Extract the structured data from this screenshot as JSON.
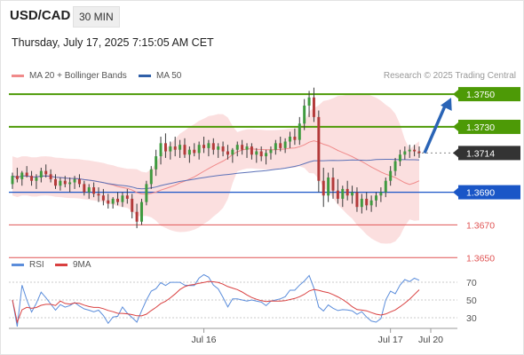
{
  "header": {
    "symbol": "USD/CAD",
    "timeframe": "30 MIN",
    "datetime": "Thursday, July 17, 2025 7:15:05 AM CET",
    "credit": "Research © 2025 Trading Central"
  },
  "colors": {
    "support": "#1a56c7",
    "resistance": "#4d9a06",
    "minor_level": "#e05454",
    "current": "#333333",
    "bull_candle": "#3f9a3f",
    "bear_candle": "#b33a3a",
    "ma20": "#f08a8a",
    "bb_fill": "#fbdcdc",
    "ma50": "#5d72b8",
    "arrow": "#2a64b6",
    "rsi": "#5b8ddb",
    "rsi_ma": "#d94040"
  },
  "chart_data": [
    {
      "type": "candlestick",
      "name": "price",
      "legend": [
        {
          "label": "MA 20 + Bollinger Bands",
          "color": "#f08a8a"
        },
        {
          "label": "MA 50",
          "color": "#2f5fa8"
        }
      ],
      "ylim": [
        1.3642,
        1.3762
      ],
      "x_ticks": [
        "Jul 16",
        "Jul 17",
        "Jul 20"
      ],
      "levels": [
        {
          "label": "1.3750",
          "value": 1.375,
          "kind": "resistance"
        },
        {
          "label": "1.3730",
          "value": 1.373,
          "kind": "resistance"
        },
        {
          "label": "1.3714",
          "value": 1.3714,
          "kind": "current"
        },
        {
          "label": "1.3690",
          "value": 1.369,
          "kind": "support"
        },
        {
          "label": "1.3670",
          "value": 1.367,
          "kind": "minor"
        },
        {
          "label": "1.3650",
          "value": 1.365,
          "kind": "minor"
        }
      ],
      "forecast": {
        "from": 1.3714,
        "to": 1.375,
        "direction": "up"
      },
      "candles": [
        [
          1.3695,
          1.3702,
          1.3692,
          1.37
        ],
        [
          1.37,
          1.3705,
          1.3696,
          1.3698
        ],
        [
          1.3698,
          1.3703,
          1.3694,
          1.3702
        ],
        [
          1.3702,
          1.3706,
          1.3699,
          1.37
        ],
        [
          1.37,
          1.3703,
          1.3694,
          1.3697
        ],
        [
          1.3697,
          1.3701,
          1.3692,
          1.3699
        ],
        [
          1.3699,
          1.3705,
          1.3696,
          1.3703
        ],
        [
          1.3703,
          1.3707,
          1.3699,
          1.3701
        ],
        [
          1.3701,
          1.3704,
          1.3696,
          1.3698
        ],
        [
          1.3698,
          1.3701,
          1.3692,
          1.3694
        ],
        [
          1.3694,
          1.3699,
          1.3691,
          1.3697
        ],
        [
          1.3697,
          1.37,
          1.3693,
          1.3695
        ],
        [
          1.3695,
          1.3699,
          1.369,
          1.3696
        ],
        [
          1.3696,
          1.37,
          1.3692,
          1.3698
        ],
        [
          1.3698,
          1.3701,
          1.3693,
          1.3695
        ],
        [
          1.3695,
          1.3697,
          1.3688,
          1.369
        ],
        [
          1.369,
          1.3695,
          1.3686,
          1.3693
        ],
        [
          1.3693,
          1.3696,
          1.3687,
          1.3689
        ],
        [
          1.3689,
          1.3693,
          1.3684,
          1.3688
        ],
        [
          1.3688,
          1.3692,
          1.3682,
          1.3685
        ],
        [
          1.3685,
          1.3689,
          1.368,
          1.3683
        ],
        [
          1.3683,
          1.3687,
          1.368,
          1.3686
        ],
        [
          1.3686,
          1.369,
          1.3682,
          1.3684
        ],
        [
          1.3684,
          1.369,
          1.3681,
          1.3688
        ],
        [
          1.3688,
          1.3692,
          1.3683,
          1.3686
        ],
        [
          1.3686,
          1.3689,
          1.3674,
          1.3678
        ],
        [
          1.3678,
          1.3683,
          1.3668,
          1.3672
        ],
        [
          1.3672,
          1.3686,
          1.367,
          1.3684
        ],
        [
          1.3684,
          1.3697,
          1.3682,
          1.3695
        ],
        [
          1.3695,
          1.3706,
          1.3692,
          1.3704
        ],
        [
          1.3704,
          1.3716,
          1.37,
          1.3712
        ],
        [
          1.3712,
          1.3724,
          1.3707,
          1.372
        ],
        [
          1.372,
          1.3726,
          1.3711,
          1.3715
        ],
        [
          1.3715,
          1.3721,
          1.371,
          1.3718
        ],
        [
          1.3718,
          1.3724,
          1.3712,
          1.3716
        ],
        [
          1.3716,
          1.3722,
          1.3711,
          1.3719
        ],
        [
          1.3719,
          1.3723,
          1.3711,
          1.3713
        ],
        [
          1.3713,
          1.3718,
          1.3708,
          1.3716
        ],
        [
          1.3716,
          1.372,
          1.3712,
          1.3714
        ],
        [
          1.3714,
          1.3721,
          1.371,
          1.3719
        ],
        [
          1.3719,
          1.3724,
          1.3714,
          1.3717
        ],
        [
          1.3717,
          1.3722,
          1.3712,
          1.372
        ],
        [
          1.372,
          1.3723,
          1.3713,
          1.3716
        ],
        [
          1.3716,
          1.372,
          1.3711,
          1.3718
        ],
        [
          1.3718,
          1.3721,
          1.3712,
          1.3715
        ],
        [
          1.3715,
          1.3719,
          1.371,
          1.3713
        ],
        [
          1.3713,
          1.3717,
          1.3708,
          1.3716
        ],
        [
          1.3716,
          1.3721,
          1.3712,
          1.3719
        ],
        [
          1.3719,
          1.3722,
          1.3713,
          1.3716
        ],
        [
          1.3716,
          1.372,
          1.3711,
          1.3718
        ],
        [
          1.3718,
          1.372,
          1.371,
          1.3713
        ],
        [
          1.3713,
          1.3717,
          1.3708,
          1.3715
        ],
        [
          1.3715,
          1.3718,
          1.3709,
          1.3712
        ],
        [
          1.3712,
          1.3716,
          1.3707,
          1.3714
        ],
        [
          1.3714,
          1.3718,
          1.371,
          1.3716
        ],
        [
          1.3716,
          1.3722,
          1.3713,
          1.372
        ],
        [
          1.372,
          1.3724,
          1.3715,
          1.3717
        ],
        [
          1.3717,
          1.3723,
          1.3714,
          1.3721
        ],
        [
          1.3721,
          1.3727,
          1.3717,
          1.3724
        ],
        [
          1.3724,
          1.3729,
          1.3719,
          1.3722
        ],
        [
          1.3722,
          1.3736,
          1.3719,
          1.3732
        ],
        [
          1.3732,
          1.3747,
          1.3728,
          1.3743
        ],
        [
          1.3743,
          1.3752,
          1.3736,
          1.3748
        ],
        [
          1.3748,
          1.3754,
          1.3733,
          1.3736
        ],
        [
          1.3736,
          1.374,
          1.369,
          1.3697
        ],
        [
          1.3697,
          1.3705,
          1.3681,
          1.3688
        ],
        [
          1.3688,
          1.3702,
          1.3684,
          1.3699
        ],
        [
          1.3699,
          1.3705,
          1.3686,
          1.3691
        ],
        [
          1.3691,
          1.3698,
          1.3683,
          1.3686
        ],
        [
          1.3686,
          1.3694,
          1.3681,
          1.3692
        ],
        [
          1.3692,
          1.3697,
          1.3685,
          1.3688
        ],
        [
          1.3688,
          1.3694,
          1.3683,
          1.369
        ],
        [
          1.369,
          1.3693,
          1.3678,
          1.3681
        ],
        [
          1.3681,
          1.3689,
          1.3677,
          1.3686
        ],
        [
          1.3686,
          1.369,
          1.3679,
          1.3682
        ],
        [
          1.3682,
          1.3688,
          1.3678,
          1.3685
        ],
        [
          1.3685,
          1.369,
          1.3681,
          1.3688
        ],
        [
          1.3688,
          1.3693,
          1.3684,
          1.369
        ],
        [
          1.369,
          1.3699,
          1.3687,
          1.3697
        ],
        [
          1.3697,
          1.3706,
          1.3694,
          1.3703
        ],
        [
          1.3703,
          1.3711,
          1.37,
          1.3709
        ],
        [
          1.3709,
          1.3716,
          1.3706,
          1.3713
        ],
        [
          1.3713,
          1.3718,
          1.371,
          1.3715
        ],
        [
          1.3715,
          1.3719,
          1.3711,
          1.3716
        ],
        [
          1.3716,
          1.3719,
          1.3712,
          1.3715
        ],
        [
          1.3715,
          1.3718,
          1.3711,
          1.3714
        ]
      ]
    },
    {
      "type": "line",
      "name": "rsi",
      "legend": [
        {
          "label": "RSI",
          "color": "#5b8ddb"
        },
        {
          "label": "9MA",
          "color": "#d94040"
        }
      ],
      "ylim": [
        20,
        80
      ],
      "y_ticks": [
        "70",
        "50",
        "30"
      ],
      "gridlines": [
        70,
        50,
        30
      ]
    }
  ]
}
